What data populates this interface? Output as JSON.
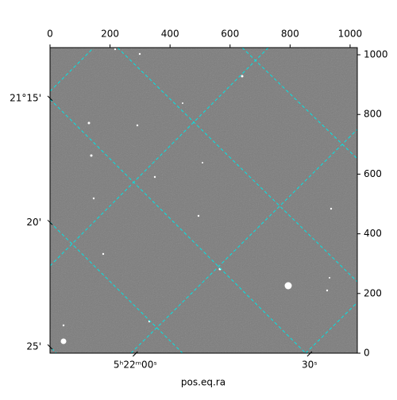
{
  "chart_data": {
    "type": "image",
    "xlabel": "pos.eq.ra",
    "xlim": [
      0,
      1024
    ],
    "ylim": [
      0,
      1024
    ],
    "xticks": [
      0,
      200,
      400,
      600,
      800,
      1000
    ],
    "yticks": [
      0,
      200,
      400,
      600,
      800,
      1000
    ],
    "ra_ticks": [
      {
        "value": 284,
        "label": "5ʰ22ᵐ00ˢ"
      },
      {
        "value": 865,
        "label": "30ˢ"
      }
    ],
    "dec_ticks": [
      {
        "value": 854,
        "label": "21°15'"
      },
      {
        "value": 438,
        "label": "20'"
      },
      {
        "value": 21,
        "label": "25'"
      }
    ],
    "grid": true
  }
}
